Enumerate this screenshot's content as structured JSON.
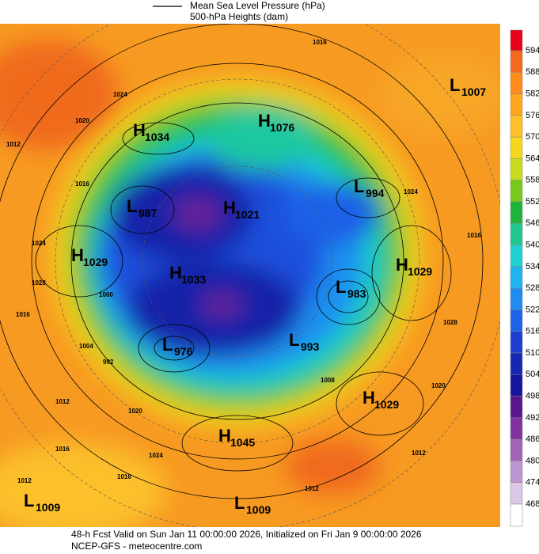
{
  "header": {
    "legend_line": "Mean Sea Level Pressure (hPa)",
    "legend_fill": "500-hPa Heights (dam)"
  },
  "colorbar": {
    "labels": [
      "594",
      "588",
      "582",
      "576",
      "570",
      "564",
      "558",
      "552",
      "546",
      "540",
      "534",
      "528",
      "522",
      "516",
      "510",
      "504",
      "498",
      "492",
      "486",
      "480",
      "474",
      "468"
    ],
    "colors": [
      "#e8001a",
      "#f56a1a",
      "#ff8c1a",
      "#ffa620",
      "#ffc028",
      "#f5d81e",
      "#c8dc1e",
      "#78c81e",
      "#1eb43c",
      "#1ec88c",
      "#1ed2d2",
      "#1eb4f0",
      "#1e8cf0",
      "#1e64e6",
      "#1e3cd2",
      "#1428b4",
      "#14149c",
      "#5a148c",
      "#8232a0",
      "#a064b4",
      "#be96d2",
      "#dcc8e6",
      "#ffffff"
    ]
  },
  "centers": [
    {
      "kind": "L",
      "value": "1007"
    },
    {
      "kind": "H",
      "value": "1034"
    },
    {
      "kind": "H",
      "value": "1076"
    },
    {
      "kind": "L",
      "value": "994"
    },
    {
      "kind": "L",
      "value": "987"
    },
    {
      "kind": "H",
      "value": "1021"
    },
    {
      "kind": "H",
      "value": "1029"
    },
    {
      "kind": "H",
      "value": "1033"
    },
    {
      "kind": "H",
      "value": "1029"
    },
    {
      "kind": "L",
      "value": "983"
    },
    {
      "kind": "L",
      "value": "976"
    },
    {
      "kind": "L",
      "value": "993"
    },
    {
      "kind": "H",
      "value": "1029"
    },
    {
      "kind": "H",
      "value": "1045"
    },
    {
      "kind": "L",
      "value": "1009"
    },
    {
      "kind": "L",
      "value": "1009"
    }
  ],
  "contour_labels": [
    "1016",
    "1024",
    "1020",
    "1012",
    "1016",
    "1024",
    "1028",
    "1016",
    "1004",
    "1000",
    "1012",
    "1020",
    "1024",
    "1016",
    "1016",
    "1012",
    "1020",
    "1028",
    "1016",
    "1024",
    "1012",
    "1008",
    "992",
    "1012"
  ],
  "footer": {
    "line1": "48-h Fcst Valid on Sun Jan 11 00:00:00 2026, Initialized on Fri Jan  9 00:00:00 2026",
    "line2": "NCEP-GFS  - meteocentre.com"
  }
}
